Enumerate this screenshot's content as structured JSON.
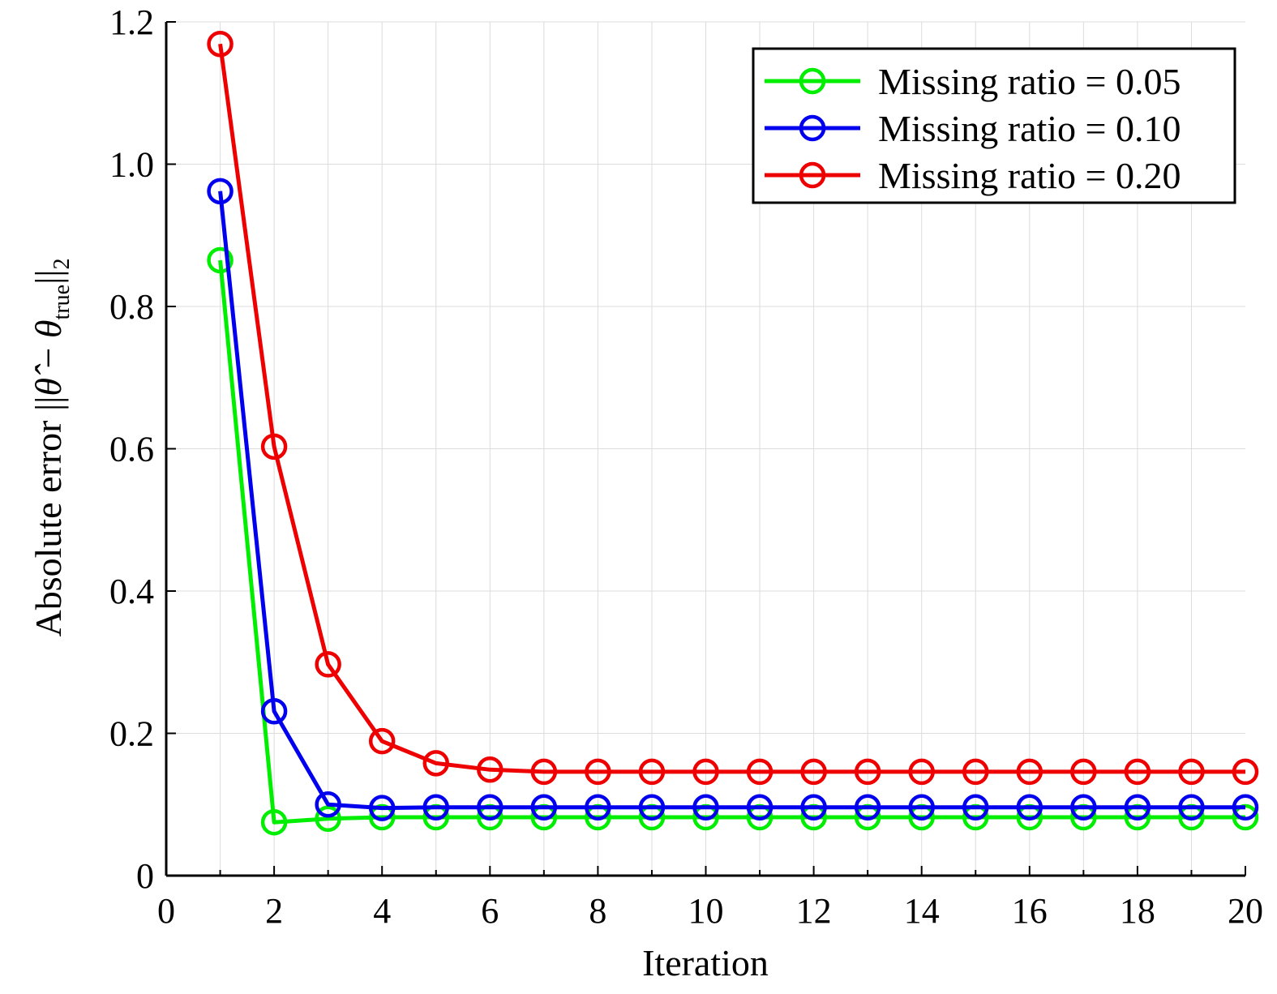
{
  "chart_data": {
    "type": "line",
    "title": "",
    "xlabel": "Iteration",
    "ylabel": {
      "prefix": "Absolute error ||",
      "theta_hat": "θ̂",
      "minus": " − ",
      "theta": "θ",
      "sub": "true",
      "suffix": "||",
      "sub2": "2"
    },
    "xlim": [
      0,
      20
    ],
    "ylim": [
      0,
      1.2
    ],
    "xticks": [
      0,
      2,
      4,
      6,
      8,
      10,
      12,
      14,
      16,
      18,
      20
    ],
    "xtick_labels": [
      "0",
      "2",
      "4",
      "6",
      "8",
      "10",
      "12",
      "14",
      "16",
      "18",
      "20"
    ],
    "yticks": [
      0,
      0.2,
      0.4,
      0.6,
      0.8,
      1.0,
      1.2
    ],
    "ytick_labels": [
      "0",
      "0.2",
      "0.4",
      "0.6",
      "0.8",
      "1.0",
      "1.2"
    ],
    "grid": true,
    "legend_position": "top-right",
    "x": [
      1,
      2,
      3,
      4,
      5,
      6,
      7,
      8,
      9,
      10,
      11,
      12,
      13,
      14,
      15,
      16,
      17,
      18,
      19,
      20
    ],
    "series": [
      {
        "name": "Missing ratio = 0.05",
        "color": "#00ee00",
        "values": [
          0.865,
          0.075,
          0.08,
          0.082,
          0.082,
          0.082,
          0.082,
          0.082,
          0.082,
          0.082,
          0.082,
          0.082,
          0.082,
          0.082,
          0.082,
          0.082,
          0.082,
          0.082,
          0.082,
          0.082
        ]
      },
      {
        "name": "Missing ratio = 0.10",
        "color": "#0000ee",
        "values": [
          0.962,
          0.231,
          0.1,
          0.095,
          0.096,
          0.096,
          0.096,
          0.096,
          0.096,
          0.096,
          0.096,
          0.096,
          0.096,
          0.096,
          0.096,
          0.096,
          0.096,
          0.096,
          0.096,
          0.096
        ]
      },
      {
        "name": "Missing ratio = 0.20",
        "color": "#ee0000",
        "values": [
          1.169,
          0.603,
          0.297,
          0.189,
          0.158,
          0.149,
          0.146,
          0.146,
          0.146,
          0.146,
          0.146,
          0.146,
          0.146,
          0.146,
          0.146,
          0.146,
          0.146,
          0.146,
          0.146,
          0.146
        ]
      }
    ]
  }
}
